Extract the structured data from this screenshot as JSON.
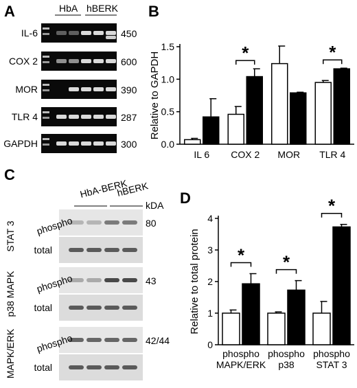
{
  "panels": {
    "A": {
      "letter": "A",
      "groups": [
        "HbA",
        "hBERK"
      ],
      "bands": [
        {
          "name": "IL-6",
          "size": "450"
        },
        {
          "name": "COX 2",
          "size": "600"
        },
        {
          "name": "MOR",
          "size": "390"
        },
        {
          "name": "TLR 4",
          "size": "287"
        },
        {
          "name": "GAPDH",
          "size": "300"
        }
      ]
    },
    "C": {
      "letter": "C",
      "groups": [
        "HbA-BERK",
        "hBERK"
      ],
      "unit": "kDA",
      "proteins": [
        {
          "name": "STAT 3",
          "rows": [
            "phospho",
            "total"
          ],
          "size": "80"
        },
        {
          "name": "p38 MAPK",
          "rows": [
            "phospho",
            "total"
          ],
          "size": "43"
        },
        {
          "name": "MAPK/ERK",
          "rows": [
            "phospho",
            "total"
          ],
          "size": "42/44"
        }
      ]
    }
  },
  "chart_data": [
    {
      "panel": "B",
      "type": "bar",
      "ylabel": "Relative to GAPDH",
      "ylim": [
        0,
        1.5
      ],
      "yticks": [
        "0.0",
        "0.5",
        "1.0",
        "1.5"
      ],
      "categories": [
        "IL 6",
        "COX 2",
        "MOR",
        "TLR 4"
      ],
      "series": [
        {
          "color": "#ffffff",
          "values": [
            0.07,
            0.46,
            1.24,
            0.95
          ],
          "errors": [
            0.02,
            0.12,
            0.27,
            0.03
          ]
        },
        {
          "color": "#000000",
          "values": [
            0.42,
            1.04,
            0.79,
            1.16
          ],
          "errors": [
            0.28,
            0.12,
            0.01,
            0.01
          ]
        }
      ],
      "significance": [
        {
          "category": 1,
          "label": "*"
        },
        {
          "category": 3,
          "label": "*"
        }
      ]
    },
    {
      "panel": "D",
      "type": "bar",
      "ylabel": "Relative to total protein",
      "ylim": [
        0,
        4
      ],
      "yticks": [
        "0",
        "1",
        "2",
        "3",
        "4"
      ],
      "categories": [
        "phospho MAPK/ERK",
        "phospho p38",
        "phospho STAT 3"
      ],
      "series": [
        {
          "color": "#ffffff",
          "values": [
            1.0,
            1.0,
            1.0
          ],
          "errors": [
            0.1,
            0.04,
            0.37
          ]
        },
        {
          "color": "#000000",
          "values": [
            1.93,
            1.73,
            3.73
          ],
          "errors": [
            0.32,
            0.3,
            0.08
          ]
        }
      ],
      "significance": [
        {
          "category": 0,
          "label": "*"
        },
        {
          "category": 1,
          "label": "*"
        },
        {
          "category": 2,
          "label": "*"
        }
      ]
    }
  ]
}
